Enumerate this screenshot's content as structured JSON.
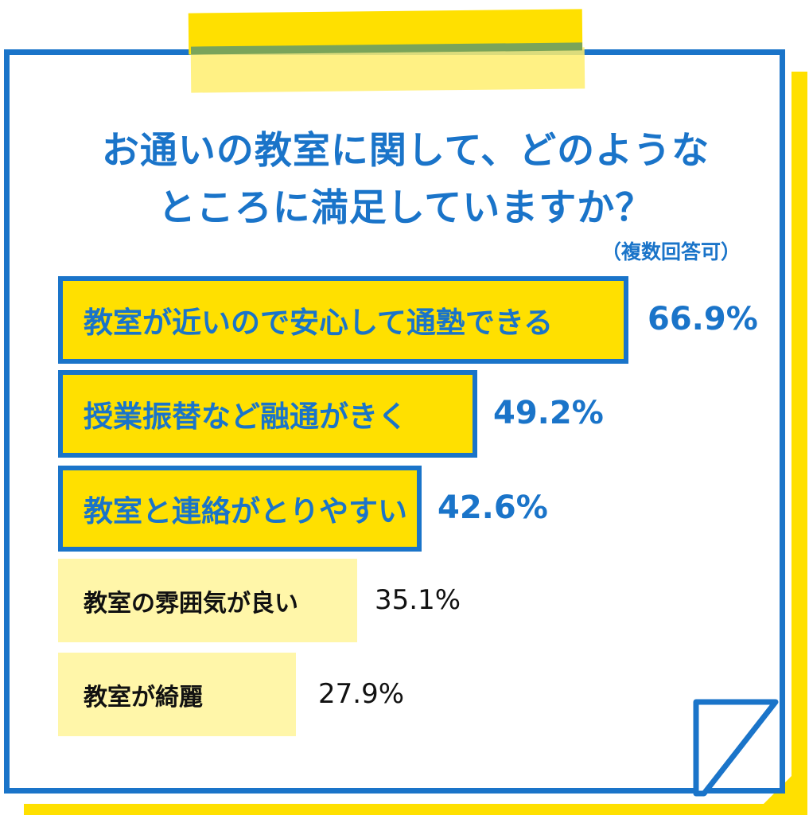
{
  "chart_data": {
    "type": "bar",
    "title": "お通いの教室に関して、どのようなところに満足していますか？",
    "title_lines": [
      "お通いの教室に関して、どのような",
      "ところに満足していますか？"
    ],
    "subtitle": "（複数回答可）",
    "categories": [
      "教室が近いので安心して通塾できる",
      "授業振替など融通がきく",
      "教室と連絡がとりやすい",
      "教室の雰囲気が良い",
      "教室が綺麗"
    ],
    "values": [
      66.9,
      49.2,
      42.6,
      35.1,
      27.9
    ],
    "value_labels": [
      "66.9%",
      "49.2%",
      "42.6%",
      "35.1%",
      "27.9%"
    ],
    "xlabel": "",
    "ylabel": "",
    "orientation": "horizontal",
    "highlighted_top_n": 3
  },
  "colors": {
    "accent_blue": "#1a74c9",
    "highlight_yellow": "#ffe000",
    "light_yellow": "#fff6a9"
  }
}
